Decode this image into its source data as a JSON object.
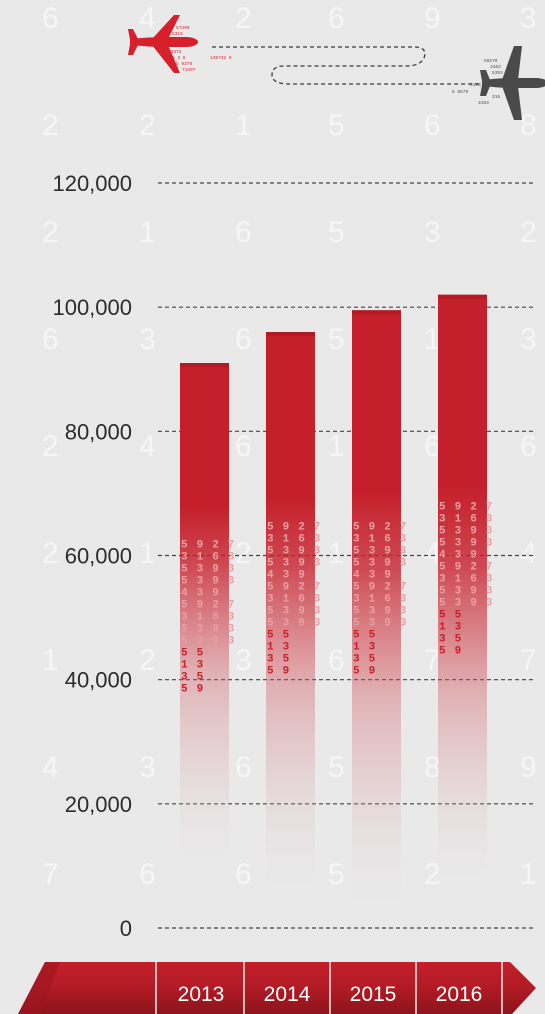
{
  "chart_data": {
    "type": "bar",
    "categories": [
      "2013",
      "2014",
      "2015",
      "2016"
    ],
    "values": [
      91000,
      96000,
      99500,
      102000
    ],
    "ylim": [
      0,
      120000
    ],
    "yticks": [
      0,
      20000,
      40000,
      60000,
      80000,
      100000,
      120000
    ],
    "ytick_labels": [
      "0",
      "20,000",
      "40,000",
      "60,000",
      "80,000",
      "100,000",
      "120,000"
    ],
    "grid": true,
    "title": "",
    "xlabel": "",
    "ylabel": ""
  },
  "colors": {
    "background": "#e9e9ea",
    "bar": "#c8202c",
    "bar_dark": "#9e1620",
    "axis_band": "#b01c26",
    "gridline": "#444444",
    "plane_red": "#d8202c",
    "plane_grey": "#4a4a4a"
  },
  "icons": {
    "left_plane": "airplane-icon",
    "right_plane": "airplane-icon"
  }
}
